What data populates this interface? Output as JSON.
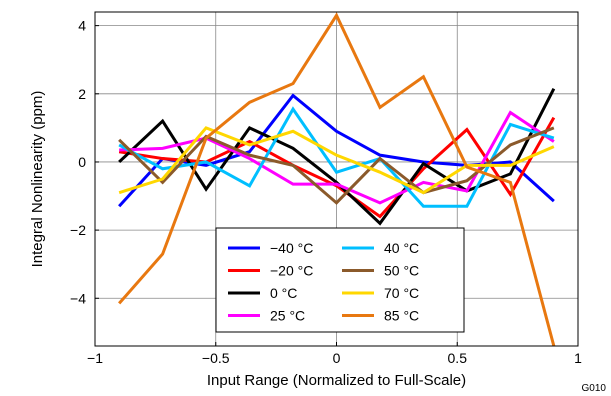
{
  "chart_data": {
    "type": "line",
    "xlabel": "Input Range (Normalized to Full-Scale)",
    "ylabel": "Integral Nonlinearity (ppm)",
    "figure_id": "G010",
    "xlim": [
      -1,
      1
    ],
    "ylim": [
      -5.4,
      4.4
    ],
    "x_ticks": [
      -1,
      -0.5,
      0,
      0.5,
      1
    ],
    "x_tick_labels": [
      "−1",
      "−0.5",
      "0",
      "0.5",
      "1"
    ],
    "y_ticks": [
      -4,
      -2,
      0,
      2,
      4
    ],
    "y_tick_labels": [
      "−4",
      "−2",
      "0",
      "2",
      "4"
    ],
    "grid": true,
    "legend_position": "bottom-center",
    "x": [
      -0.9,
      -0.72,
      -0.54,
      -0.36,
      -0.18,
      0,
      0.18,
      0.36,
      0.54,
      0.72,
      0.9
    ],
    "series": [
      {
        "name": "−40 °C",
        "color": "#0000ff",
        "values": [
          -1.3,
          0.1,
          -0.1,
          0.3,
          1.95,
          0.9,
          0.2,
          0.0,
          -0.1,
          0.0,
          -1.15
        ]
      },
      {
        "name": "−20 °C",
        "color": "#ff0000",
        "values": [
          0.3,
          0.1,
          0.0,
          0.6,
          -0.1,
          -0.7,
          -1.6,
          -0.2,
          0.95,
          -0.95,
          1.3
        ]
      },
      {
        "name": "0 °C",
        "color": "#000000",
        "values": [
          0.0,
          1.2,
          -0.8,
          1.0,
          0.4,
          -0.6,
          -1.8,
          -0.05,
          -0.85,
          -0.35,
          2.15
        ]
      },
      {
        "name": "25 °C",
        "color": "#ff00ff",
        "values": [
          0.35,
          0.4,
          0.7,
          0.1,
          -0.65,
          -0.65,
          -1.2,
          -0.6,
          -0.85,
          1.45,
          0.6
        ]
      },
      {
        "name": "40 °C",
        "color": "#00bfff",
        "values": [
          0.5,
          -0.2,
          0.0,
          -0.7,
          1.55,
          -0.3,
          0.1,
          -1.3,
          -1.3,
          1.1,
          0.7
        ]
      },
      {
        "name": "50 °C",
        "color": "#8b5a2b",
        "values": [
          0.65,
          -0.6,
          0.75,
          0.2,
          -0.1,
          -1.2,
          0.1,
          -0.9,
          -0.55,
          0.5,
          1.0
        ]
      },
      {
        "name": "70 °C",
        "color": "#ffd700",
        "values": [
          -0.9,
          -0.5,
          1.0,
          0.5,
          0.9,
          0.2,
          -0.3,
          -0.9,
          -0.1,
          -0.1,
          0.45
        ]
      },
      {
        "name": "85 °C",
        "color": "#e87810",
        "values": [
          -4.15,
          -2.7,
          0.7,
          1.75,
          2.3,
          4.3,
          1.6,
          2.5,
          -0.15,
          -0.6,
          -5.4
        ]
      }
    ]
  }
}
